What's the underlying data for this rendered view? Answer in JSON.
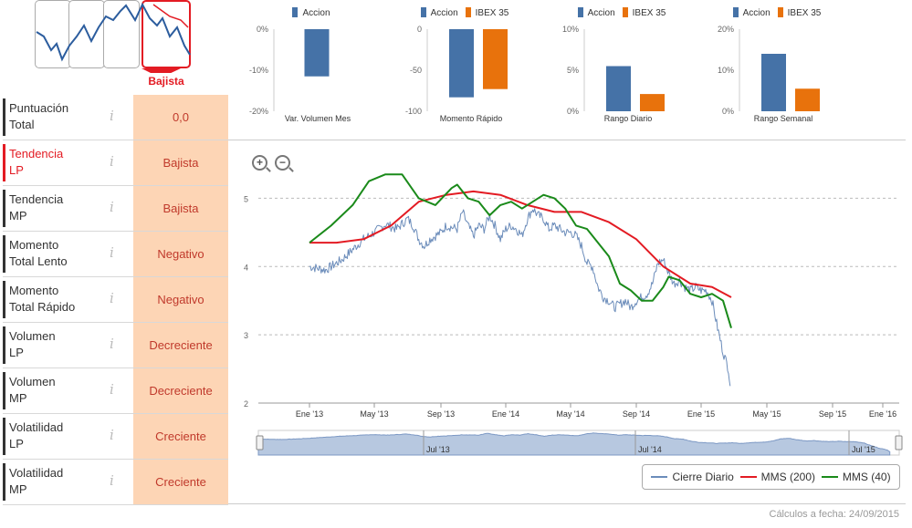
{
  "trend": {
    "selected_label": "Bajista"
  },
  "left_table": {
    "rows": [
      {
        "label1": "Puntuación",
        "label2": "Total",
        "value": "0,0"
      },
      {
        "label1": "Tendencia",
        "label2": "LP",
        "value": "Bajista"
      },
      {
        "label1": "Tendencia",
        "label2": "MP",
        "value": "Bajista"
      },
      {
        "label1": "Momento",
        "label2": "Total Lento",
        "value": "Negativo"
      },
      {
        "label1": "Momento",
        "label2": "Total Rápido",
        "value": "Negativo"
      },
      {
        "label1": "Volumen",
        "label2": "LP",
        "value": "Decreciente"
      },
      {
        "label1": "Volumen",
        "label2": "MP",
        "value": "Decreciente"
      },
      {
        "label1": "Volatilidad",
        "label2": "LP",
        "value": "Creciente"
      },
      {
        "label1": "Volatilidad",
        "label2": "MP",
        "value": "Creciente"
      }
    ],
    "info_glyph": "i"
  },
  "colors": {
    "accion": "#4572a7",
    "ibex": "#e8720c",
    "mms200": "#e31b23",
    "mms40": "#1a8a1a",
    "close": "#6b8cba"
  },
  "mini_charts": [
    {
      "title": "Var. Volumen Mes",
      "legend": [
        "Accion"
      ],
      "ticks": [
        "0%",
        "-10%",
        "-20%"
      ],
      "ylim": [
        -20,
        0
      ],
      "values": [
        -11.5
      ]
    },
    {
      "title": "Momento Rápido",
      "legend": [
        "Accion",
        "IBEX 35"
      ],
      "ticks": [
        "0",
        "-50",
        "-100"
      ],
      "ylim": [
        -100,
        0
      ],
      "values": [
        -83,
        -73
      ]
    },
    {
      "title": "Rango Diario",
      "legend": [
        "Accion",
        "IBEX 35"
      ],
      "ticks": [
        "10%",
        "5%",
        "0%"
      ],
      "ylim": [
        0,
        10
      ],
      "values": [
        5.5,
        2.1
      ]
    },
    {
      "title": "Rango Semanal",
      "legend": [
        "Accion",
        "IBEX 35"
      ],
      "ticks": [
        "20%",
        "10%",
        "0%"
      ],
      "ylim": [
        0,
        20
      ],
      "values": [
        14,
        5.5
      ]
    }
  ],
  "chart_data": {
    "type": "line",
    "ylim": [
      2,
      5.5
    ],
    "yticks": [
      "5",
      "4",
      "3",
      "2"
    ],
    "xticks": [
      "Ene '13",
      "May '13",
      "Sep '13",
      "Ene '14",
      "May '14",
      "Sep '14",
      "Ene '15",
      "May '15",
      "Sep '15",
      "Ene '16"
    ],
    "navigator_labels": [
      "Jul '13",
      "Jul '14",
      "Jul '15"
    ],
    "series": [
      {
        "name": "Cierre Diario",
        "points": [
          [
            0,
            4.0
          ],
          [
            3,
            3.95
          ],
          [
            6,
            4.1
          ],
          [
            8,
            4.25
          ],
          [
            10,
            4.4
          ],
          [
            12,
            4.5
          ],
          [
            14,
            4.62
          ],
          [
            16,
            4.55
          ],
          [
            18,
            4.7
          ],
          [
            19,
            4.6
          ],
          [
            20,
            4.4
          ],
          [
            21,
            4.3
          ],
          [
            22,
            4.4
          ],
          [
            24,
            4.5
          ],
          [
            25,
            4.6
          ],
          [
            27,
            4.55
          ],
          [
            28,
            4.8
          ],
          [
            29,
            4.6
          ],
          [
            30,
            4.45
          ],
          [
            31,
            4.6
          ],
          [
            32,
            4.55
          ],
          [
            33,
            4.75
          ],
          [
            34,
            4.6
          ],
          [
            35,
            4.4
          ],
          [
            36,
            4.55
          ],
          [
            37,
            4.6
          ],
          [
            38,
            4.55
          ],
          [
            39,
            4.45
          ],
          [
            40,
            4.7
          ],
          [
            41,
            4.85
          ],
          [
            42,
            4.75
          ],
          [
            43,
            4.7
          ],
          [
            44,
            4.55
          ],
          [
            45,
            4.6
          ],
          [
            46,
            4.55
          ],
          [
            47,
            4.5
          ],
          [
            48,
            4.5
          ],
          [
            49,
            4.45
          ],
          [
            50,
            4.3
          ],
          [
            51,
            4.05
          ],
          [
            52,
            4.0
          ],
          [
            53,
            3.7
          ],
          [
            54,
            3.55
          ],
          [
            55,
            3.5
          ],
          [
            56,
            3.4
          ],
          [
            57,
            3.45
          ],
          [
            58,
            3.5
          ],
          [
            59,
            3.4
          ],
          [
            60,
            3.5
          ],
          [
            61,
            3.55
          ],
          [
            62,
            3.6
          ],
          [
            63,
            3.75
          ],
          [
            64,
            4.05
          ],
          [
            65,
            4.1
          ],
          [
            66,
            3.9
          ],
          [
            67,
            3.75
          ],
          [
            68,
            3.8
          ],
          [
            69,
            3.7
          ],
          [
            70,
            3.65
          ],
          [
            71,
            3.7
          ],
          [
            72,
            3.65
          ],
          [
            73,
            3.65
          ],
          [
            74,
            3.5
          ],
          [
            75,
            3.1
          ],
          [
            76,
            2.75
          ],
          [
            77,
            2.5
          ],
          [
            77.3,
            2.25
          ]
        ]
      },
      {
        "name": "MMS (200)",
        "points": [
          [
            0,
            4.35
          ],
          [
            5,
            4.35
          ],
          [
            10,
            4.4
          ],
          [
            15,
            4.6
          ],
          [
            20,
            4.95
          ],
          [
            25,
            5.05
          ],
          [
            30,
            5.1
          ],
          [
            35,
            5.05
          ],
          [
            40,
            4.9
          ],
          [
            45,
            4.8
          ],
          [
            50,
            4.8
          ],
          [
            55,
            4.65
          ],
          [
            60,
            4.4
          ],
          [
            65,
            4.0
          ],
          [
            70,
            3.75
          ],
          [
            74,
            3.7
          ],
          [
            77.5,
            3.55
          ]
        ]
      },
      {
        "name": "MMS (40)",
        "points": [
          [
            0,
            4.35
          ],
          [
            4,
            4.6
          ],
          [
            8,
            4.9
          ],
          [
            11,
            5.25
          ],
          [
            14,
            5.35
          ],
          [
            17,
            5.35
          ],
          [
            20,
            5.0
          ],
          [
            23,
            4.9
          ],
          [
            26,
            5.15
          ],
          [
            27,
            5.2
          ],
          [
            29,
            5.0
          ],
          [
            31,
            4.95
          ],
          [
            33,
            4.75
          ],
          [
            35,
            4.9
          ],
          [
            37,
            4.95
          ],
          [
            39,
            4.85
          ],
          [
            41,
            4.95
          ],
          [
            43,
            5.05
          ],
          [
            45,
            5.0
          ],
          [
            47,
            4.85
          ],
          [
            49,
            4.6
          ],
          [
            51,
            4.55
          ],
          [
            53,
            4.35
          ],
          [
            55,
            4.15
          ],
          [
            57,
            3.75
          ],
          [
            59,
            3.65
          ],
          [
            61,
            3.5
          ],
          [
            63,
            3.5
          ],
          [
            65,
            3.7
          ],
          [
            66,
            3.85
          ],
          [
            68,
            3.8
          ],
          [
            70,
            3.6
          ],
          [
            72,
            3.55
          ],
          [
            74,
            3.6
          ],
          [
            76,
            3.5
          ],
          [
            77.5,
            3.1
          ]
        ]
      }
    ]
  },
  "footer": "Cálculos a fecha: 24/09/2015"
}
